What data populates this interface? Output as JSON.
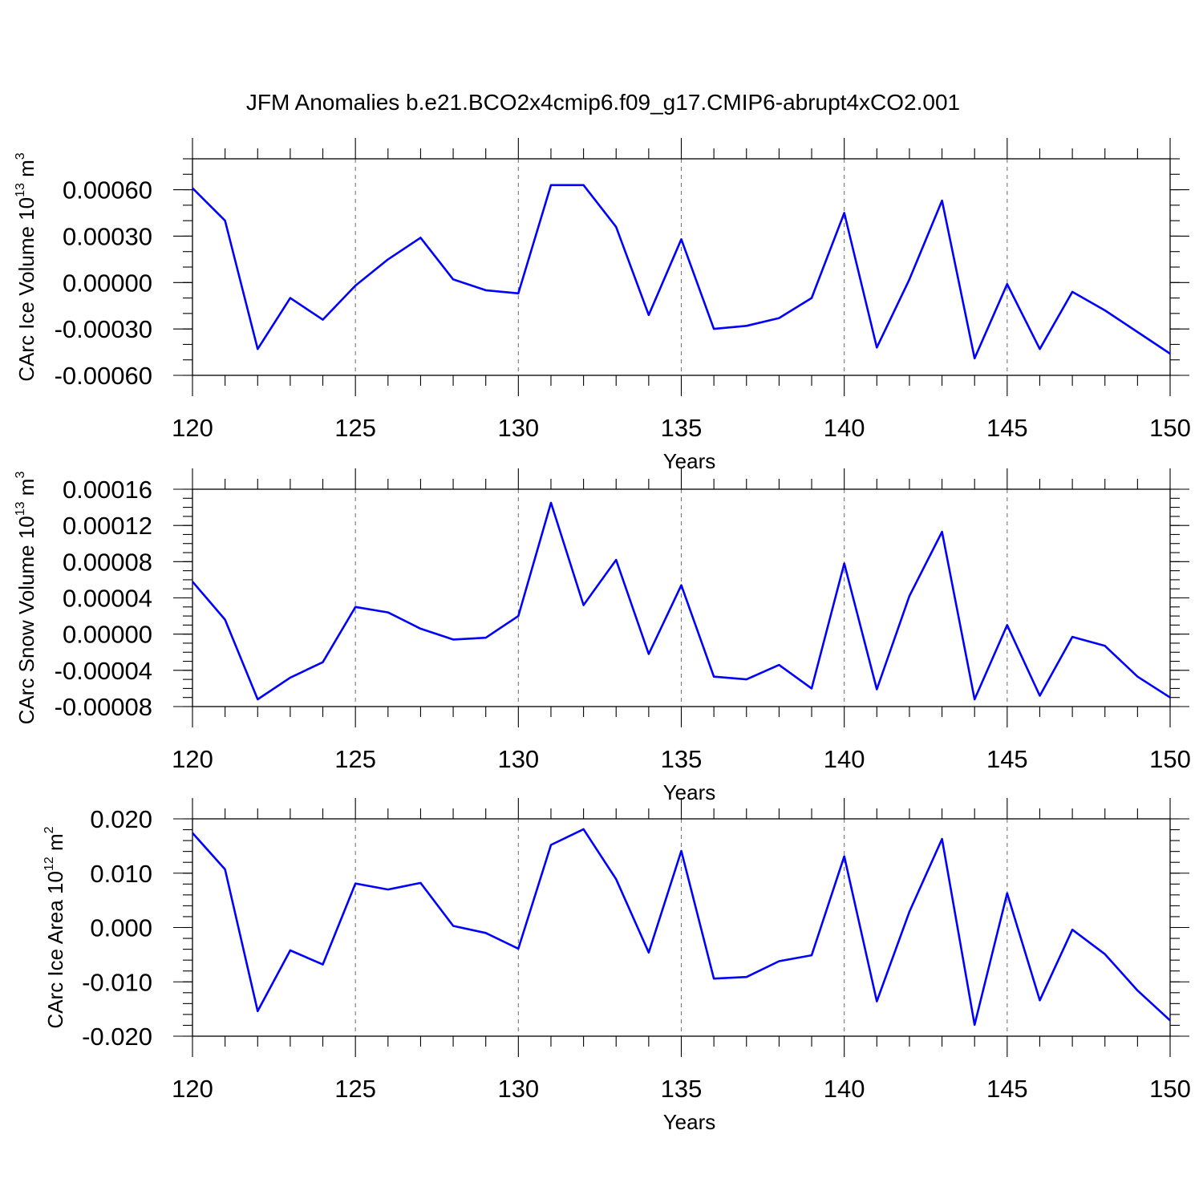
{
  "title": "JFM Anomalies b.e21.BCO2x4cmip6.f09_g17.CMIP6-abrupt4xCO2.001",
  "series_color": "#0000ff",
  "chart_data": [
    {
      "type": "line",
      "ylabel_main": "CArc Ice Volume 10",
      "ylabel_exp": "13",
      "ylabel_unit": " m",
      "ylabel_unit_exp": "3",
      "xlabel": "Years",
      "xlim": [
        120,
        150
      ],
      "ylim": [
        -0.0006,
        0.0008
      ],
      "xticks": [
        120,
        125,
        130,
        135,
        140,
        145,
        150
      ],
      "xtick_labels": [
        "120",
        "125",
        "130",
        "135",
        "140",
        "145",
        "150"
      ],
      "yticks": [
        -0.0006,
        -0.0003,
        0,
        0.0003,
        0.0006
      ],
      "ytick_labels": [
        "-0.00060",
        "-0.00030",
        "0.00000",
        "0.00030",
        "0.00060"
      ],
      "y_minor_step": 0.0001,
      "grid": "vertical-dashed",
      "x": [
        120,
        121,
        122,
        123,
        124,
        125,
        126,
        127,
        128,
        129,
        130,
        131,
        132,
        133,
        134,
        135,
        136,
        137,
        138,
        139,
        140,
        141,
        142,
        143,
        144,
        145,
        146,
        147,
        148,
        149,
        150
      ],
      "values": [
        0.00061,
        0.0004,
        -0.00043,
        -0.0001,
        -0.00024,
        -2e-05,
        0.00015,
        0.00029,
        2e-05,
        -5e-05,
        -7e-05,
        0.00063,
        0.00063,
        0.00036,
        -0.00021,
        0.00028,
        -0.0003,
        -0.00028,
        -0.00023,
        -0.0001,
        0.00045,
        -0.00042,
        2e-05,
        0.00053,
        -0.00049,
        -1e-05,
        -0.00043,
        -6e-05,
        -0.00018,
        -0.00032,
        -0.00046
      ]
    },
    {
      "type": "line",
      "ylabel_main": "CArc Snow Volume 10",
      "ylabel_exp": "13",
      "ylabel_unit": " m",
      "ylabel_unit_exp": "3",
      "xlabel": "Years",
      "xlim": [
        120,
        150
      ],
      "ylim": [
        -8e-05,
        0.00016
      ],
      "xticks": [
        120,
        125,
        130,
        135,
        140,
        145,
        150
      ],
      "xtick_labels": [
        "120",
        "125",
        "130",
        "135",
        "140",
        "145",
        "150"
      ],
      "yticks": [
        -8e-05,
        -4e-05,
        0,
        4e-05,
        8e-05,
        0.00012,
        0.00016
      ],
      "ytick_labels": [
        "-0.00008",
        "-0.00004",
        "0.00000",
        "0.00004",
        "0.00008",
        "0.00012",
        "0.00016"
      ],
      "y_minor_step": 1e-05,
      "grid": "vertical-dashed",
      "x": [
        120,
        121,
        122,
        123,
        124,
        125,
        126,
        127,
        128,
        129,
        130,
        131,
        132,
        133,
        134,
        135,
        136,
        137,
        138,
        139,
        140,
        141,
        142,
        143,
        144,
        145,
        146,
        147,
        148,
        149,
        150
      ],
      "values": [
        5.8e-05,
        1.6e-05,
        -7.2e-05,
        -4.8e-05,
        -3.1e-05,
        3e-05,
        2.4e-05,
        6e-06,
        -6e-06,
        -4e-06,
        2e-05,
        0.000145,
        3.2e-05,
        8.2e-05,
        -2.2e-05,
        5.4e-05,
        -4.7e-05,
        -5e-05,
        -3.4e-05,
        -6e-05,
        7.8e-05,
        -6.1e-05,
        4.2e-05,
        0.000113,
        -7.2e-05,
        1e-05,
        -6.8e-05,
        -3e-06,
        -1.3e-05,
        -4.7e-05,
        -7e-05
      ]
    },
    {
      "type": "line",
      "ylabel_main": "CArc Ice Area 10",
      "ylabel_exp": "12",
      "ylabel_unit": " m",
      "ylabel_unit_exp": "2",
      "xlabel": "Years",
      "xlim": [
        120,
        150
      ],
      "ylim": [
        -0.02,
        0.02
      ],
      "xticks": [
        120,
        125,
        130,
        135,
        140,
        145,
        150
      ],
      "xtick_labels": [
        "120",
        "125",
        "130",
        "135",
        "140",
        "145",
        "150"
      ],
      "yticks": [
        -0.02,
        -0.01,
        0,
        0.01,
        0.02
      ],
      "ytick_labels": [
        "-0.020",
        "-0.010",
        "0.000",
        "0.010",
        "0.020"
      ],
      "y_minor_step": 0.002,
      "grid": "vertical-dashed",
      "x": [
        120,
        121,
        122,
        123,
        124,
        125,
        126,
        127,
        128,
        129,
        130,
        131,
        132,
        133,
        134,
        135,
        136,
        137,
        138,
        139,
        140,
        141,
        142,
        143,
        144,
        145,
        146,
        147,
        148,
        149,
        150
      ],
      "values": [
        0.0174,
        0.0107,
        -0.0154,
        -0.0042,
        -0.0068,
        0.0081,
        0.007,
        0.0082,
        0.0003,
        -0.001,
        -0.0039,
        0.0152,
        0.0181,
        0.0089,
        -0.0046,
        0.0141,
        -0.0094,
        -0.0091,
        -0.0062,
        -0.0051,
        0.0131,
        -0.0136,
        0.0029,
        0.0163,
        -0.0179,
        0.0063,
        -0.0134,
        -0.0004,
        -0.0049,
        -0.0116,
        -0.0171
      ]
    }
  ]
}
